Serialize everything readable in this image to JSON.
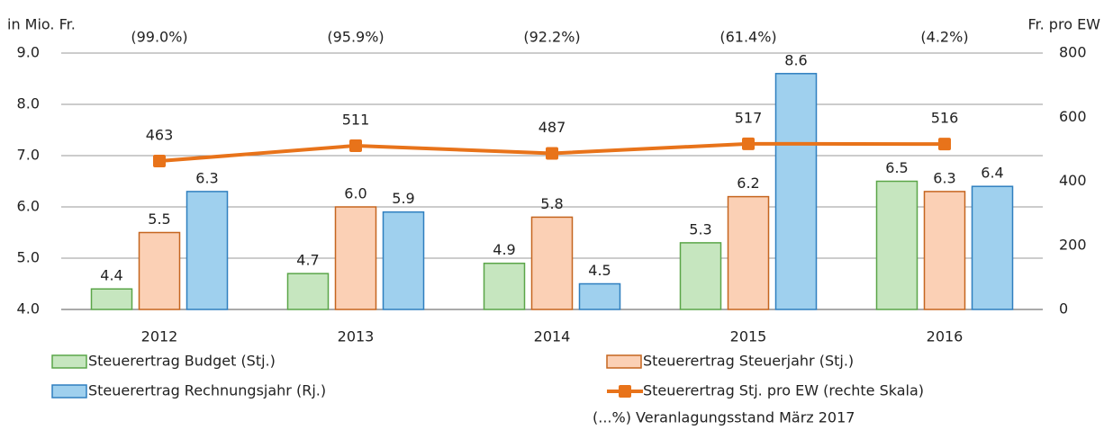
{
  "chart_data": {
    "type": "bar",
    "y_axis_label": "in Mio. Fr.",
    "y2_axis_label": "Fr. pro EW",
    "categories": [
      "2012",
      "2013",
      "2014",
      "2015",
      "2016"
    ],
    "annotations": [
      "(99.0%)",
      "(95.9%)",
      "(92.2%)",
      "(61.4%)",
      "(4.2%)"
    ],
    "footnote": "(...%) Veranlagungsstand März 2017",
    "series": [
      {
        "name": "Steuerertrag Budget (Stj.)",
        "color": "#c6e6bf",
        "stroke": "#5aa548",
        "values": [
          4.4,
          4.7,
          4.9,
          5.3,
          6.5
        ],
        "value_labels": [
          "4.4",
          "4.7",
          "4.9",
          "5.3",
          "6.5"
        ]
      },
      {
        "name": "Steuerertrag Steuerjahr (Stj.)",
        "color": "#fbd0b5",
        "stroke": "#c5651f",
        "values": [
          5.5,
          6.0,
          5.8,
          6.2,
          6.3
        ],
        "value_labels": [
          "5.5",
          "6.0",
          "5.8",
          "6.2",
          "6.3"
        ]
      },
      {
        "name": "Steuerertrag Rechnungsjahr (Rj.)",
        "color": "#9fd0ee",
        "stroke": "#2f7fbf",
        "values": [
          6.3,
          5.9,
          4.5,
          8.6,
          6.4
        ],
        "value_labels": [
          "6.3",
          "5.9",
          "4.5",
          "8.6",
          "6.4"
        ]
      },
      {
        "name": "Steuerertrag Stj. pro EW (rechte Skala)",
        "type": "line",
        "axis": "y2",
        "color": "#e8731a",
        "values": [
          463,
          511,
          487,
          517,
          516
        ]
      }
    ],
    "ylim": [
      4,
      9
    ],
    "yticks": [
      {
        "value": 4,
        "label": "4.0"
      },
      {
        "value": 5,
        "label": "5.0"
      },
      {
        "value": 6,
        "label": "6.0"
      },
      {
        "value": 7,
        "label": "7.0"
      },
      {
        "value": 8,
        "label": "8.0"
      },
      {
        "value": 9,
        "label": "9.0"
      }
    ],
    "y2lim": [
      0,
      800
    ],
    "y2ticks": [
      0,
      200,
      400,
      600,
      800
    ],
    "grid": true
  }
}
